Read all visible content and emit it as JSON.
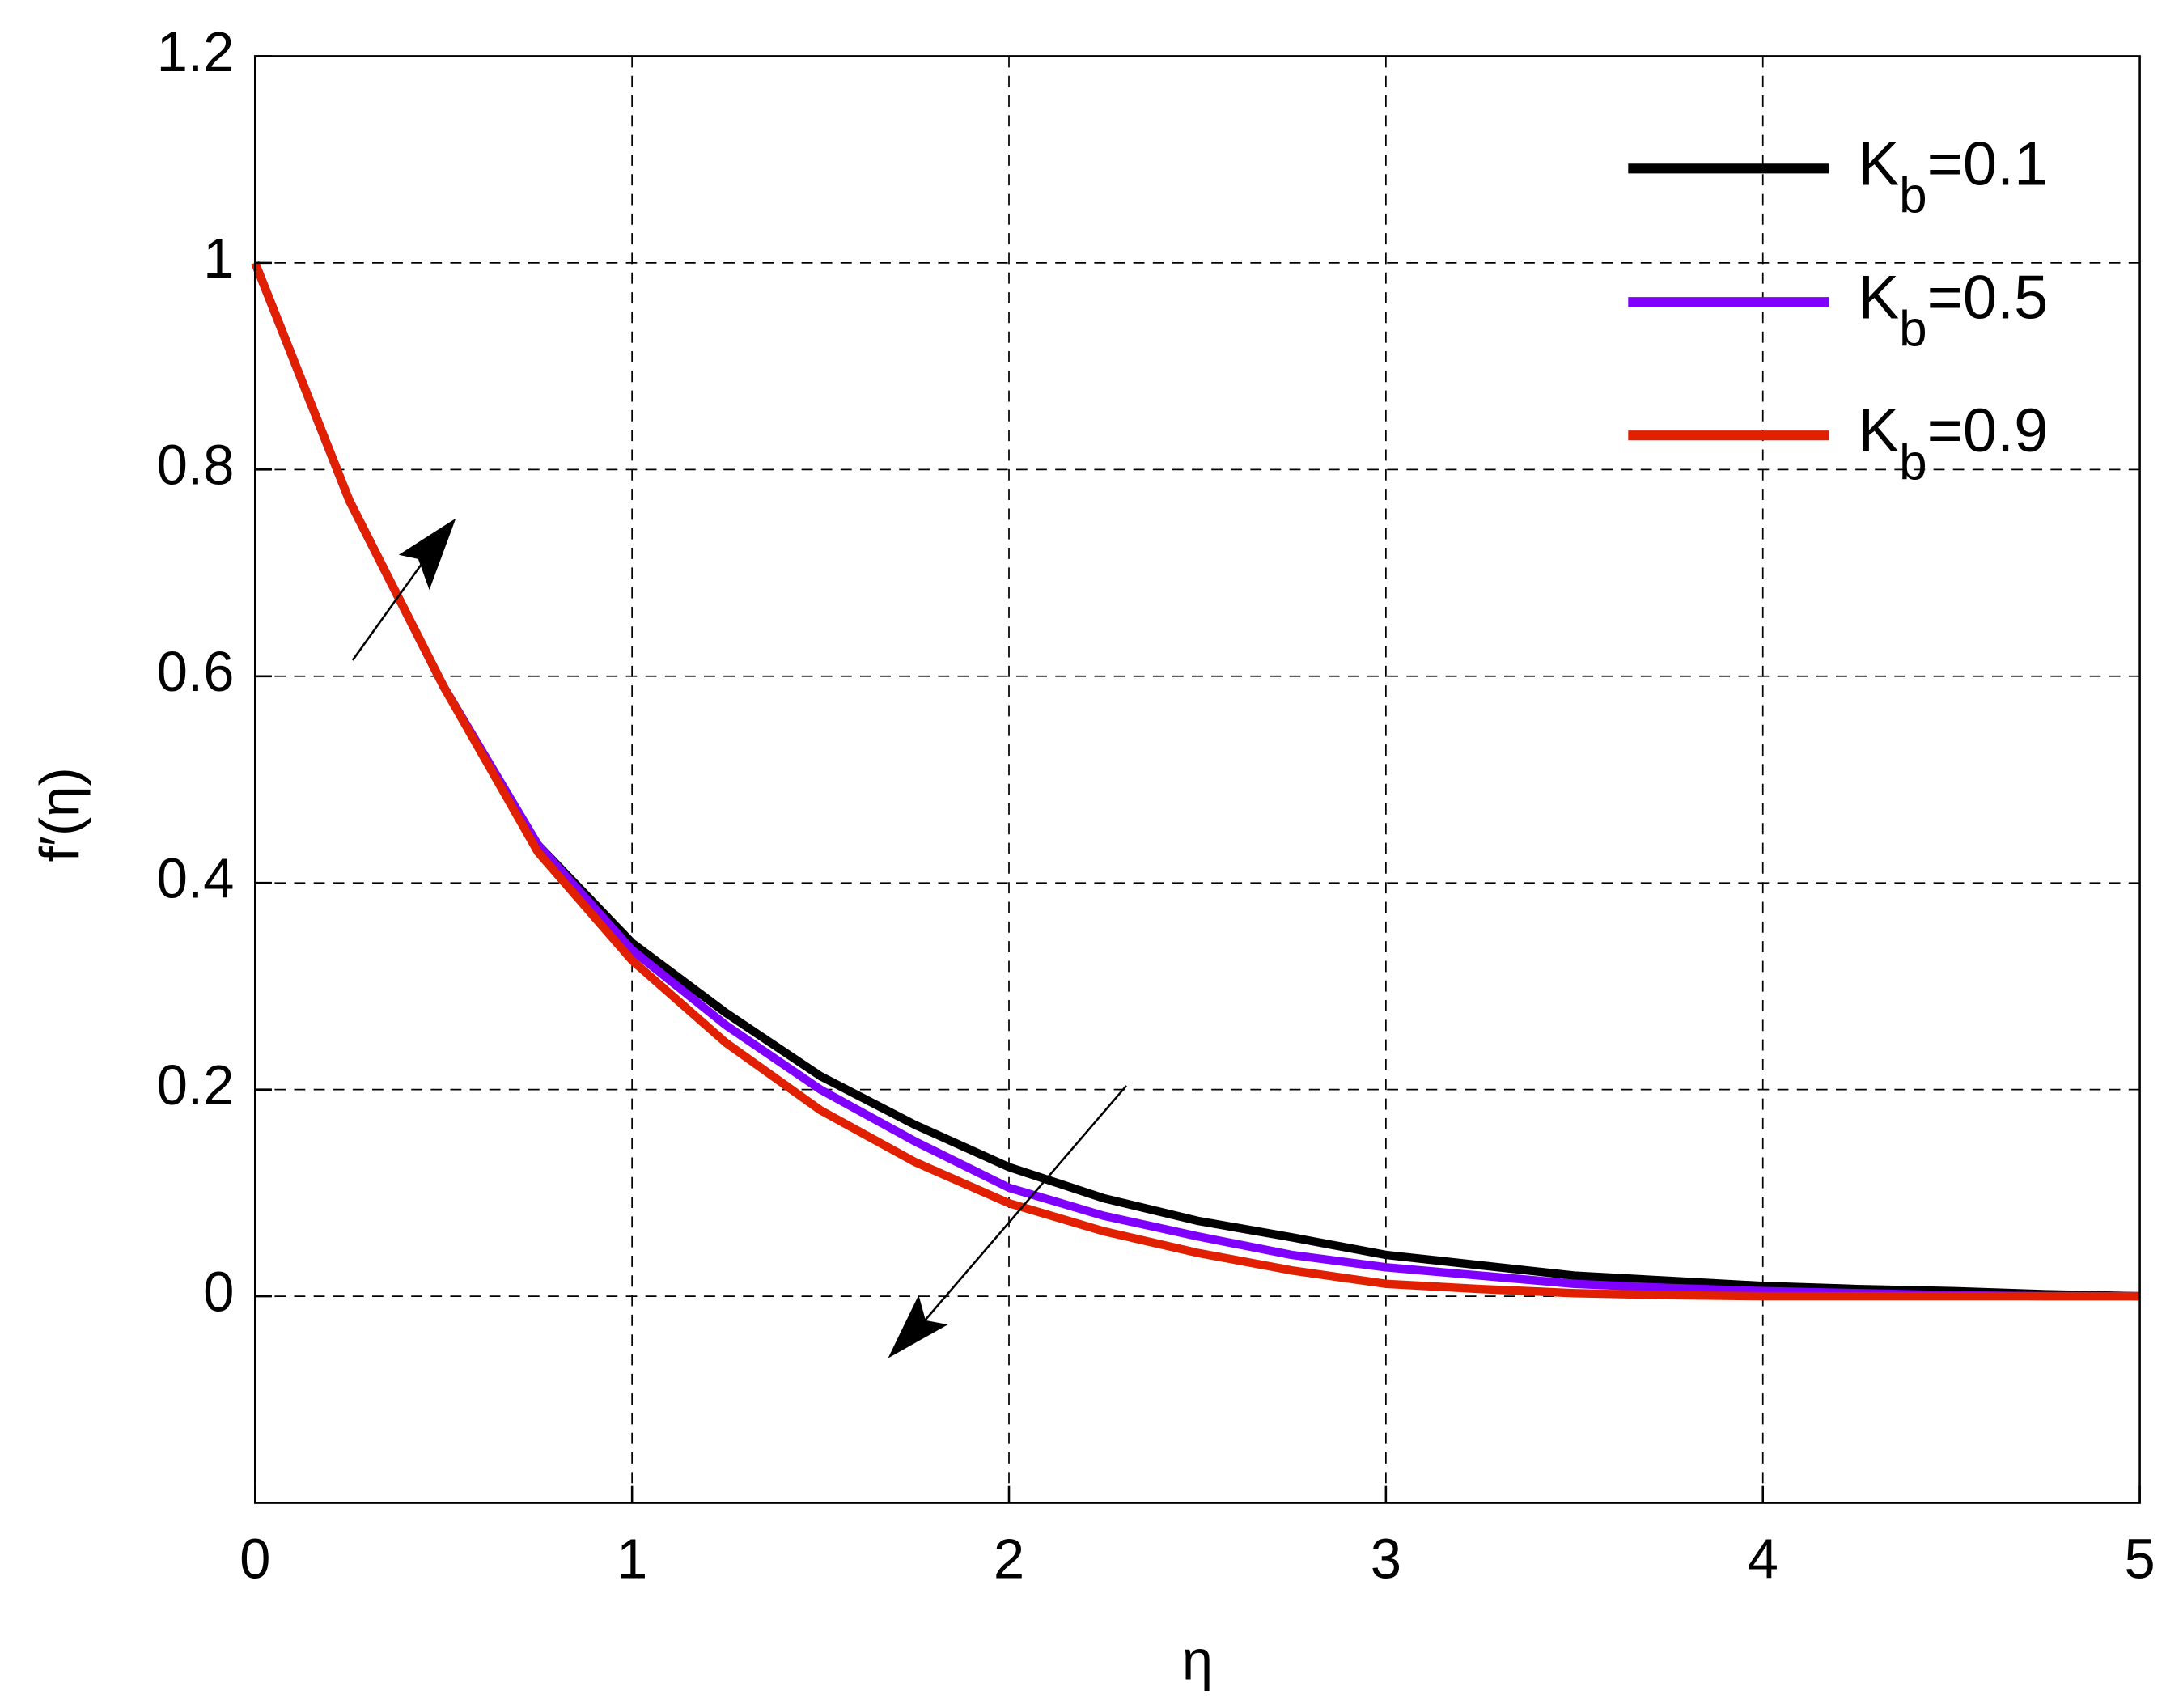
{
  "chart_data": {
    "type": "line",
    "x_label": "η",
    "y_label": "f′(η)",
    "x": [
      0,
      0.25,
      0.5,
      0.75,
      1,
      1.25,
      1.5,
      1.75,
      2,
      2.25,
      2.5,
      2.75,
      3,
      3.25,
      3.5,
      3.75,
      4,
      4.25,
      4.5,
      4.75,
      5
    ],
    "series": [
      {
        "name": "Kb=0.1",
        "color": "#000000",
        "values": [
          1,
          0.77,
          0.59,
          0.437,
          0.342,
          0.274,
          0.213,
          0.166,
          0.125,
          0.095,
          0.073,
          0.057,
          0.04,
          0.03,
          0.02,
          0.015,
          0.01,
          0.007,
          0.005,
          0.002,
          0
        ]
      },
      {
        "name": "Kb=0.5",
        "color": "#7f00ff",
        "values": [
          1,
          0.77,
          0.59,
          0.437,
          0.335,
          0.262,
          0.2,
          0.15,
          0.105,
          0.078,
          0.058,
          0.04,
          0.028,
          0.02,
          0.012,
          0.008,
          0.005,
          0.003,
          0.001,
          0,
          0
        ]
      },
      {
        "name": "Kb=0.9",
        "color": "#e02000",
        "values": [
          1,
          0.77,
          0.59,
          0.43,
          0.325,
          0.245,
          0.18,
          0.13,
          0.09,
          0.063,
          0.042,
          0.025,
          0.012,
          0.007,
          0.003,
          0.001,
          0,
          0,
          0,
          0,
          0
        ]
      }
    ],
    "xlim": [
      0,
      5
    ],
    "xticks": [
      0,
      1,
      2,
      3,
      4,
      5
    ],
    "ylim": [
      -0.2,
      1.2
    ],
    "yticks": [
      0,
      0.2,
      0.4,
      0.6,
      0.8,
      1,
      1.2
    ],
    "grid": true,
    "legend": "upper right"
  }
}
